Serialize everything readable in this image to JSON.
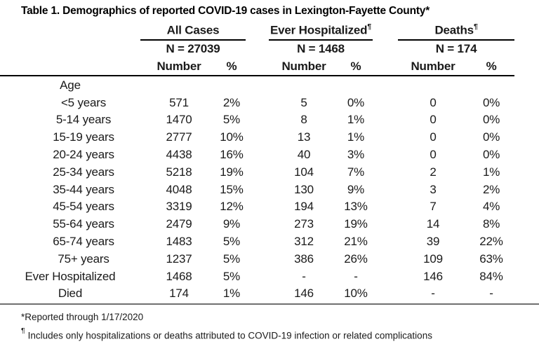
{
  "title": "Table 1. Demographics of reported COVID-19 cases in Lexington-Fayette County*",
  "table": {
    "groups": [
      {
        "label": "All Cases",
        "mark": "",
        "n": "N = 27039"
      },
      {
        "label": "Ever Hospitalized",
        "mark": "¶",
        "n": "N = 1468"
      },
      {
        "label": "Deaths",
        "mark": "¶",
        "n": "N = 174"
      }
    ],
    "col_headers": {
      "number": "Number",
      "percent": "%"
    },
    "section_label": "Age",
    "rows": [
      {
        "label": "<5 years",
        "indent": true,
        "cells": [
          "571",
          "2%",
          "5",
          "0%",
          "0",
          "0%"
        ]
      },
      {
        "label": "5-14 years",
        "indent": true,
        "cells": [
          "1470",
          "5%",
          "8",
          "1%",
          "0",
          "0%"
        ]
      },
      {
        "label": "15-19 years",
        "indent": true,
        "cells": [
          "2777",
          "10%",
          "13",
          "1%",
          "0",
          "0%"
        ]
      },
      {
        "label": "20-24 years",
        "indent": true,
        "cells": [
          "4438",
          "16%",
          "40",
          "3%",
          "0",
          "0%"
        ]
      },
      {
        "label": "25-34 years",
        "indent": true,
        "cells": [
          "5218",
          "19%",
          "104",
          "7%",
          "2",
          "1%"
        ]
      },
      {
        "label": "35-44 years",
        "indent": true,
        "cells": [
          "4048",
          "15%",
          "130",
          "9%",
          "3",
          "2%"
        ]
      },
      {
        "label": "45-54 years",
        "indent": true,
        "cells": [
          "3319",
          "12%",
          "194",
          "13%",
          "7",
          "4%"
        ]
      },
      {
        "label": "55-64 years",
        "indent": true,
        "cells": [
          "2479",
          "9%",
          "273",
          "19%",
          "14",
          "8%"
        ]
      },
      {
        "label": "65-74 years",
        "indent": true,
        "cells": [
          "1483",
          "5%",
          "312",
          "21%",
          "39",
          "22%"
        ]
      },
      {
        "label": "75+ years",
        "indent": true,
        "cells": [
          "1237",
          "5%",
          "386",
          "26%",
          "109",
          "63%"
        ]
      },
      {
        "label": "Ever Hospitalized",
        "indent": false,
        "cells": [
          "1468",
          "5%",
          "-",
          "-",
          "146",
          "84%"
        ]
      },
      {
        "label": "Died",
        "indent": false,
        "cells": [
          "174",
          "1%",
          "146",
          "10%",
          "-",
          "-"
        ]
      }
    ],
    "footnotes": [
      {
        "mark": "*",
        "text": "Reported through 1/17/2020"
      },
      {
        "mark": "¶",
        "text": "Includes only hospitalizations or deaths attributed to COVID-19 infection or related complications"
      }
    ]
  },
  "colors": {
    "text": "#1a1a1a",
    "heading": "#000000",
    "rule_dark": "#000000",
    "rule_grey": "#707070"
  }
}
